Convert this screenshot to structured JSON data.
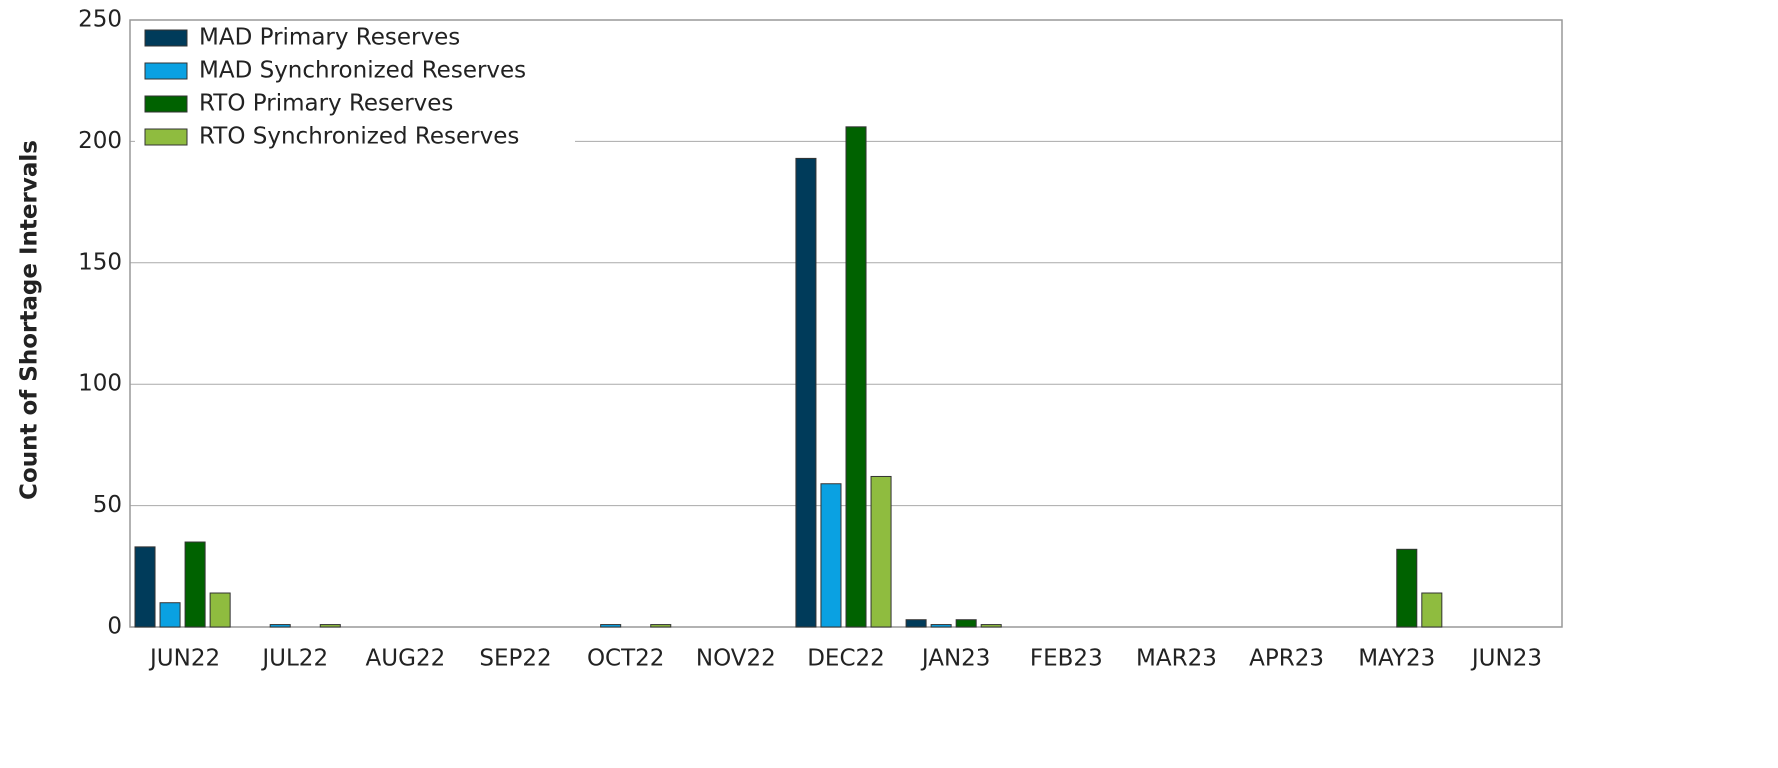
{
  "chart_data": {
    "type": "bar",
    "y_label": "Count of Shortage Intervals",
    "categories": [
      "JUN22",
      "JUL22",
      "AUG22",
      "SEP22",
      "OCT22",
      "NOV22",
      "DEC22",
      "JAN23",
      "FEB23",
      "MAR23",
      "APR23",
      "MAY23",
      "JUN23"
    ],
    "series": [
      {
        "name": "MAD Primary Reserves",
        "color": "#003b5a",
        "values": [
          33,
          0,
          0,
          0,
          0,
          0,
          193,
          3,
          0,
          0,
          0,
          0,
          0
        ]
      },
      {
        "name": "MAD Synchronized Reserves",
        "color": "#0aa1e2",
        "values": [
          10,
          1,
          0,
          0,
          1,
          0,
          59,
          1,
          0,
          0,
          0,
          0,
          0
        ]
      },
      {
        "name": "RTO Primary Reserves",
        "color": "#006200",
        "values": [
          35,
          0,
          0,
          0,
          0,
          0,
          206,
          3,
          0,
          0,
          0,
          32,
          0
        ]
      },
      {
        "name": "RTO Synchronized Reserves",
        "color": "#8fbc3f",
        "values": [
          14,
          1,
          0,
          0,
          1,
          0,
          62,
          1,
          0,
          0,
          0,
          14,
          0
        ]
      }
    ],
    "ylim": [
      0,
      250
    ],
    "yticks": [
      0,
      50,
      100,
      150,
      200,
      250
    ],
    "grid": true,
    "legend": "top-left"
  }
}
